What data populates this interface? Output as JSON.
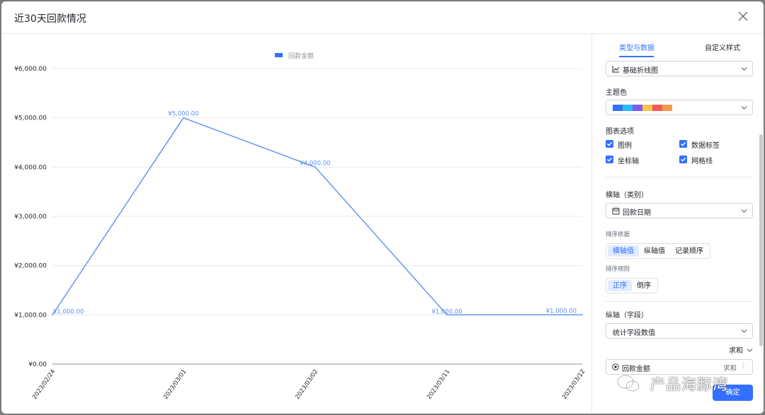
{
  "dialog": {
    "title": "近30天回款情况"
  },
  "chart_data": {
    "type": "line",
    "title": "",
    "legend": {
      "position": "top-center",
      "entries": [
        "回款金额"
      ]
    },
    "categories": [
      "2023/02/24",
      "2023/03/01",
      "2023/03/02",
      "2023/03/11",
      "2023/03/12"
    ],
    "series": [
      {
        "name": "回款金额",
        "values": [
          1000,
          5000,
          4000,
          1000,
          1000
        ],
        "labels": [
          "¥1,000.00",
          "¥5,000.00",
          "¥4,000.00",
          "¥1,000.00",
          "¥1,000.00"
        ]
      }
    ],
    "yticks": [
      "¥0.00",
      "¥1,000.00",
      "¥2,000.00",
      "¥3,000.00",
      "¥4,000.00",
      "¥5,000.00",
      "¥6,000.00"
    ],
    "ylim": [
      0,
      6000
    ],
    "grid": true,
    "line_color": "#5b8ff0",
    "xlabel": "",
    "ylabel": ""
  },
  "panel": {
    "tabs": [
      {
        "label": "类型与数据",
        "active": true
      },
      {
        "label": "自定义样式",
        "active": false
      }
    ],
    "chart_type": {
      "value": "基础折线图",
      "icon": "line-chart-icon"
    },
    "theme": {
      "label": "主题色",
      "colors": [
        "#3370ff",
        "#2fb8f5",
        "#7f5cf0",
        "#f7c34b",
        "#f25a5a",
        "#f29a4b"
      ]
    },
    "chart_options": {
      "label": "图表选项",
      "items": [
        {
          "label": "图例",
          "checked": true
        },
        {
          "label": "数据标签",
          "checked": true
        },
        {
          "label": "坐标轴",
          "checked": true
        },
        {
          "label": "网格线",
          "checked": true
        }
      ]
    },
    "x_axis": {
      "label": "横轴（类别）",
      "field": "回款日期",
      "field_icon": "calendar-icon",
      "sort_by_label": "排序依据",
      "sort_by": [
        "横轴值",
        "纵轴值",
        "记录顺序"
      ],
      "sort_by_active": 0,
      "sort_rule_label": "排序规则",
      "sort_rule": [
        "正序",
        "倒序"
      ],
      "sort_rule_active": 0
    },
    "y_axis": {
      "label": "纵轴（字段）",
      "mode": "统计字段数值",
      "aggregate_toggle": "求和",
      "field": "回款金额",
      "field_icon": "money-icon",
      "field_aggregate": "求和",
      "more": "⋮"
    },
    "confirm_label": "确定"
  },
  "watermark": {
    "text": "产品海豚湾"
  }
}
